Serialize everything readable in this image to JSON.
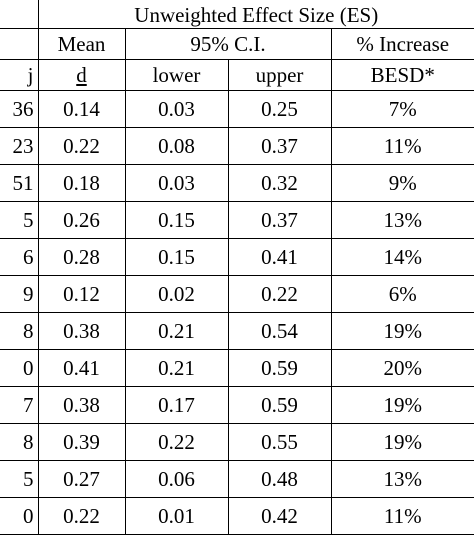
{
  "table": {
    "header": {
      "group_title": "Unweighted Effect Size (ES)",
      "mean": "Mean",
      "ci": "95% C.I.",
      "increase": "% Increase",
      "k_partial": "j",
      "d": "d",
      "lower": "lower",
      "upper": "upper",
      "besd": "BESD*"
    },
    "rows": [
      {
        "k": "36",
        "d": "0.14",
        "lower": "0.03",
        "upper": "0.25",
        "besd": "7%"
      },
      {
        "k": "23",
        "d": "0.22",
        "lower": "0.08",
        "upper": "0.37",
        "besd": "11%"
      },
      {
        "k": "51",
        "d": "0.18",
        "lower": "0.03",
        "upper": "0.32",
        "besd": "9%"
      },
      {
        "k": "5",
        "d": "0.26",
        "lower": "0.15",
        "upper": "0.37",
        "besd": "13%"
      },
      {
        "k": "6",
        "d": "0.28",
        "lower": "0.15",
        "upper": "0.41",
        "besd": "14%"
      },
      {
        "k": "9",
        "d": "0.12",
        "lower": "0.02",
        "upper": "0.22",
        "besd": "6%"
      },
      {
        "k": "8",
        "d": "0.38",
        "lower": "0.21",
        "upper": "0.54",
        "besd": "19%"
      },
      {
        "k": "0",
        "d": "0.41",
        "lower": "0.21",
        "upper": "0.59",
        "besd": "20%"
      },
      {
        "k": "7",
        "d": "0.38",
        "lower": "0.17",
        "upper": "0.59",
        "besd": "19%"
      },
      {
        "k": "8",
        "d": "0.39",
        "lower": "0.22",
        "upper": "0.55",
        "besd": "19%"
      },
      {
        "k": "5",
        "d": "0.27",
        "lower": "0.06",
        "upper": "0.48",
        "besd": "13%"
      },
      {
        "k": "0",
        "d": "0.22",
        "lower": "0.01",
        "upper": "0.42",
        "besd": "11%"
      }
    ]
  }
}
